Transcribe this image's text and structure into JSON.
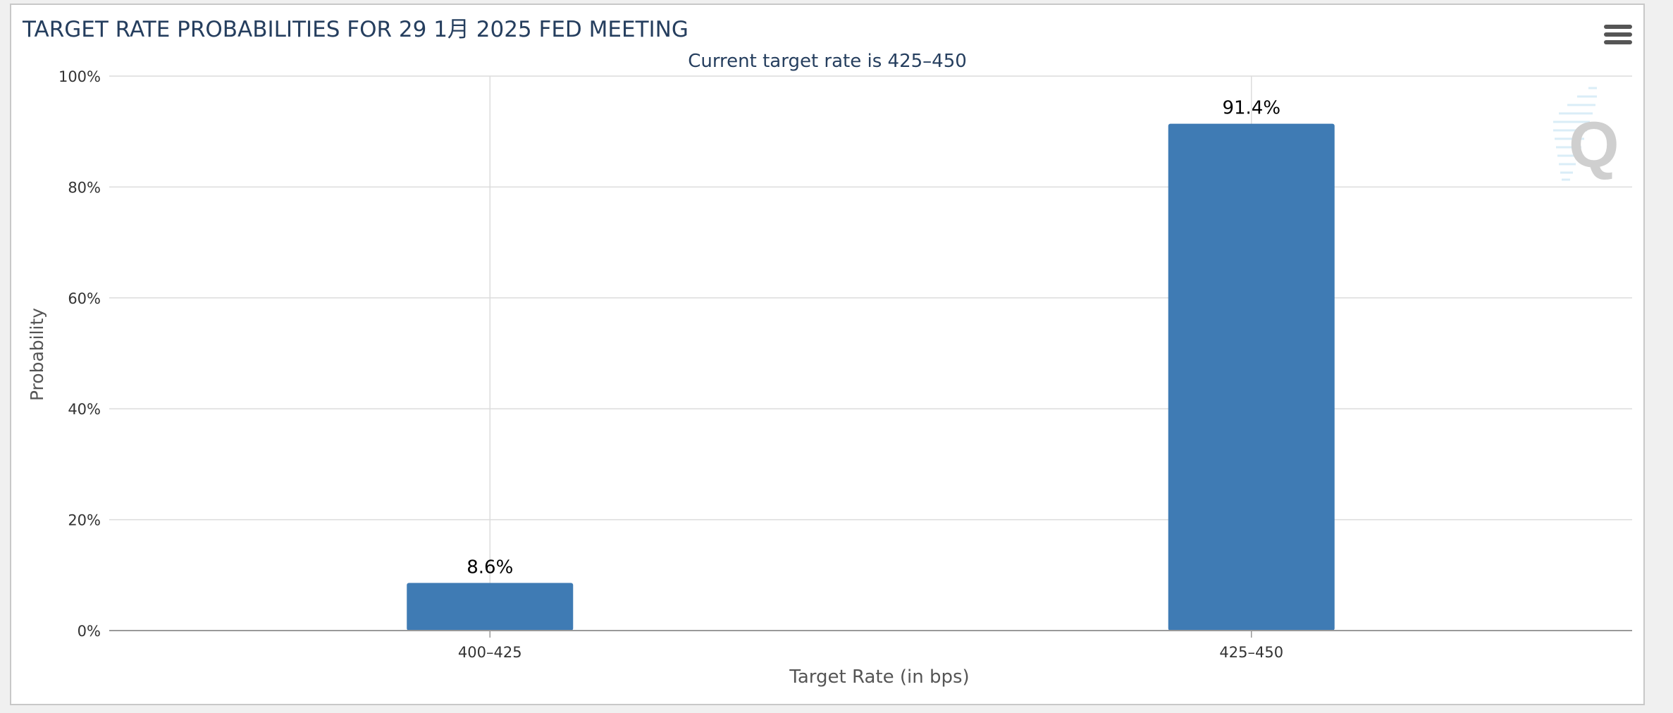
{
  "chart_data": {
    "type": "bar",
    "title": "TARGET RATE PROBABILITIES FOR 29 1月 2025 FED MEETING",
    "subtitle": "Current target rate is 425–450",
    "xlabel": "Target Rate (in bps)",
    "ylabel": "Probability",
    "categories": [
      "400–425",
      "425–450"
    ],
    "values": [
      8.6,
      91.4
    ],
    "value_labels": [
      "8.6%",
      "91.4%"
    ],
    "ylim": [
      0,
      100
    ],
    "yticks": [
      0,
      20,
      40,
      60,
      80,
      100
    ],
    "ytick_labels": [
      "0%",
      "20%",
      "40%",
      "60%",
      "80%",
      "100%"
    ],
    "grid": true,
    "legend": "none"
  },
  "colors": {
    "bar": "#3f7bb4",
    "title": "#253e5e",
    "grid": "#dcdcdc",
    "axis_text": "#333333"
  },
  "icons": {
    "menu": "hamburger-menu-icon",
    "watermark": "q-logo-watermark"
  }
}
